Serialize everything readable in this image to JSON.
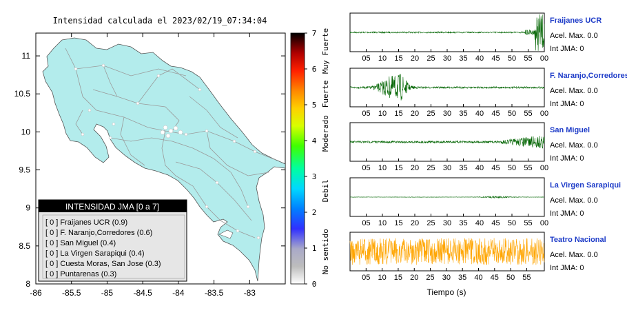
{
  "map": {
    "title": "Intensidad calculada el 2023/02/19_07:34:04",
    "x_ticks": [
      "-86",
      "-85.5",
      "-85",
      "-84.5",
      "-84",
      "-83.5",
      "-83"
    ],
    "y_ticks": [
      "11",
      "10.5",
      "10",
      "9.5",
      "9",
      "8.5",
      "8"
    ],
    "land_color": "#b3ecec",
    "ocean_color": "#ffffff"
  },
  "colorbar": {
    "ticks": [
      "0",
      "1",
      "2",
      "3",
      "4",
      "5",
      "6",
      "7"
    ],
    "labels": [
      "No sentido",
      "Debil",
      "Moderado",
      "Fuerte",
      "Muy Fuerte"
    ]
  },
  "legend": {
    "title": "INTENSIDAD JMA [0 a 7]",
    "items": [
      "[ 0 ]  Fraijanes UCR (0.9)",
      "[ 0 ]  F. Naranjo,Corredores (0.6)",
      "[ 0 ]  San Miguel (0.4)",
      "[ 0 ]  La Virgen Sarapiqui (0.4)",
      "[ 0 ]  Cuesta Moras, San Jose (0.3)",
      "[ 0 ]  Puntarenas (0.3)"
    ]
  },
  "traces": {
    "x_ticks": [
      "05",
      "10",
      "15",
      "20",
      "25",
      "30",
      "35",
      "40",
      "45",
      "50",
      "55",
      "00"
    ],
    "last_x_ticks": [
      "05",
      "10",
      "15",
      "20",
      "25",
      "30",
      "35",
      "40",
      "45",
      "50",
      "55"
    ],
    "xlabel": "Tiempo (s)",
    "stations": [
      {
        "name": "Fraijanes UCR",
        "acel": "Acel. Max. 0.0",
        "jma": "Int JMA: 0",
        "color": "#006400"
      },
      {
        "name": "F. Naranjo,Corredores",
        "acel": "Acel. Max. 0.0",
        "jma": "Int JMA: 0",
        "color": "#006400"
      },
      {
        "name": "San Miguel",
        "acel": "Acel. Max. 0.0",
        "jma": "Int JMA: 0",
        "color": "#006400"
      },
      {
        "name": "La Virgen Sarapiqui",
        "acel": "Acel. Max. 0.0",
        "jma": "Int JMA: 0",
        "color": "#006400"
      },
      {
        "name": "Teatro Nacional",
        "acel": "Acel. Max. 0.0",
        "jma": "Int JMA: 0",
        "color": "#ffa500"
      }
    ]
  },
  "chart_data": [
    {
      "type": "heatmap",
      "title": "Intensidad calculada el 2023/02/19_07:34:04",
      "xlim": [
        -86,
        -82.5
      ],
      "ylim": [
        8,
        11.3
      ],
      "colorbar_range": [
        0,
        7
      ]
    },
    {
      "type": "line",
      "xlabel": "Tiempo (s)",
      "xlim": [
        0,
        60
      ],
      "series": [
        {
          "name": "Fraijanes UCR",
          "acel_max": 0.0,
          "int_jma": 0
        },
        {
          "name": "F. Naranjo,Corredores",
          "acel_max": 0.0,
          "int_jma": 0
        },
        {
          "name": "San Miguel",
          "acel_max": 0.0,
          "int_jma": 0
        },
        {
          "name": "La Virgen Sarapiqui",
          "acel_max": 0.0,
          "int_jma": 0
        },
        {
          "name": "Teatro Nacional",
          "acel_max": 0.0,
          "int_jma": 0
        }
      ]
    }
  ]
}
